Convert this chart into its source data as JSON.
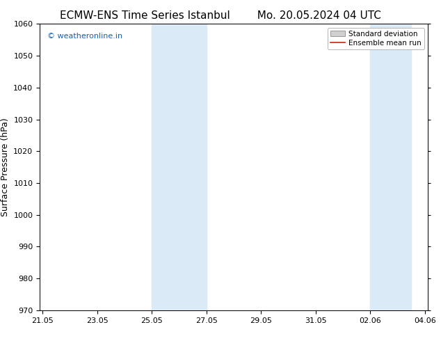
{
  "title_left": "ECMW-ENS Time Series Istanbul",
  "title_right": "Mo. 20.05.2024 04 UTC",
  "ylabel": "Surface Pressure (hPa)",
  "ylim": [
    970,
    1060
  ],
  "yticks": [
    970,
    980,
    990,
    1000,
    1010,
    1020,
    1030,
    1040,
    1050,
    1060
  ],
  "xtick_labels": [
    "21.05",
    "23.05",
    "25.05",
    "27.05",
    "29.05",
    "31.05",
    "02.06",
    "04.06"
  ],
  "xtick_positions": [
    0,
    2,
    4,
    6,
    8,
    10,
    12,
    14
  ],
  "xlim": [
    -0.1,
    14.1
  ],
  "shaded_regions": [
    {
      "x_start": 4.0,
      "x_end": 6.0,
      "color": "#daeaf7"
    },
    {
      "x_start": 12.0,
      "x_end": 13.5,
      "color": "#daeaf7"
    }
  ],
  "watermark_text": "© weatheronline.in",
  "watermark_color": "#1a5fb4",
  "legend_std_label": "Standard deviation",
  "legend_mean_label": "Ensemble mean run",
  "legend_std_facecolor": "#d0d0d0",
  "legend_std_edgecolor": "#999999",
  "legend_mean_color": "#cc2200",
  "background_color": "#ffffff",
  "axes_facecolor": "#ffffff",
  "title_fontsize": 11,
  "label_fontsize": 9,
  "tick_fontsize": 8,
  "watermark_fontsize": 8,
  "legend_fontsize": 7.5
}
